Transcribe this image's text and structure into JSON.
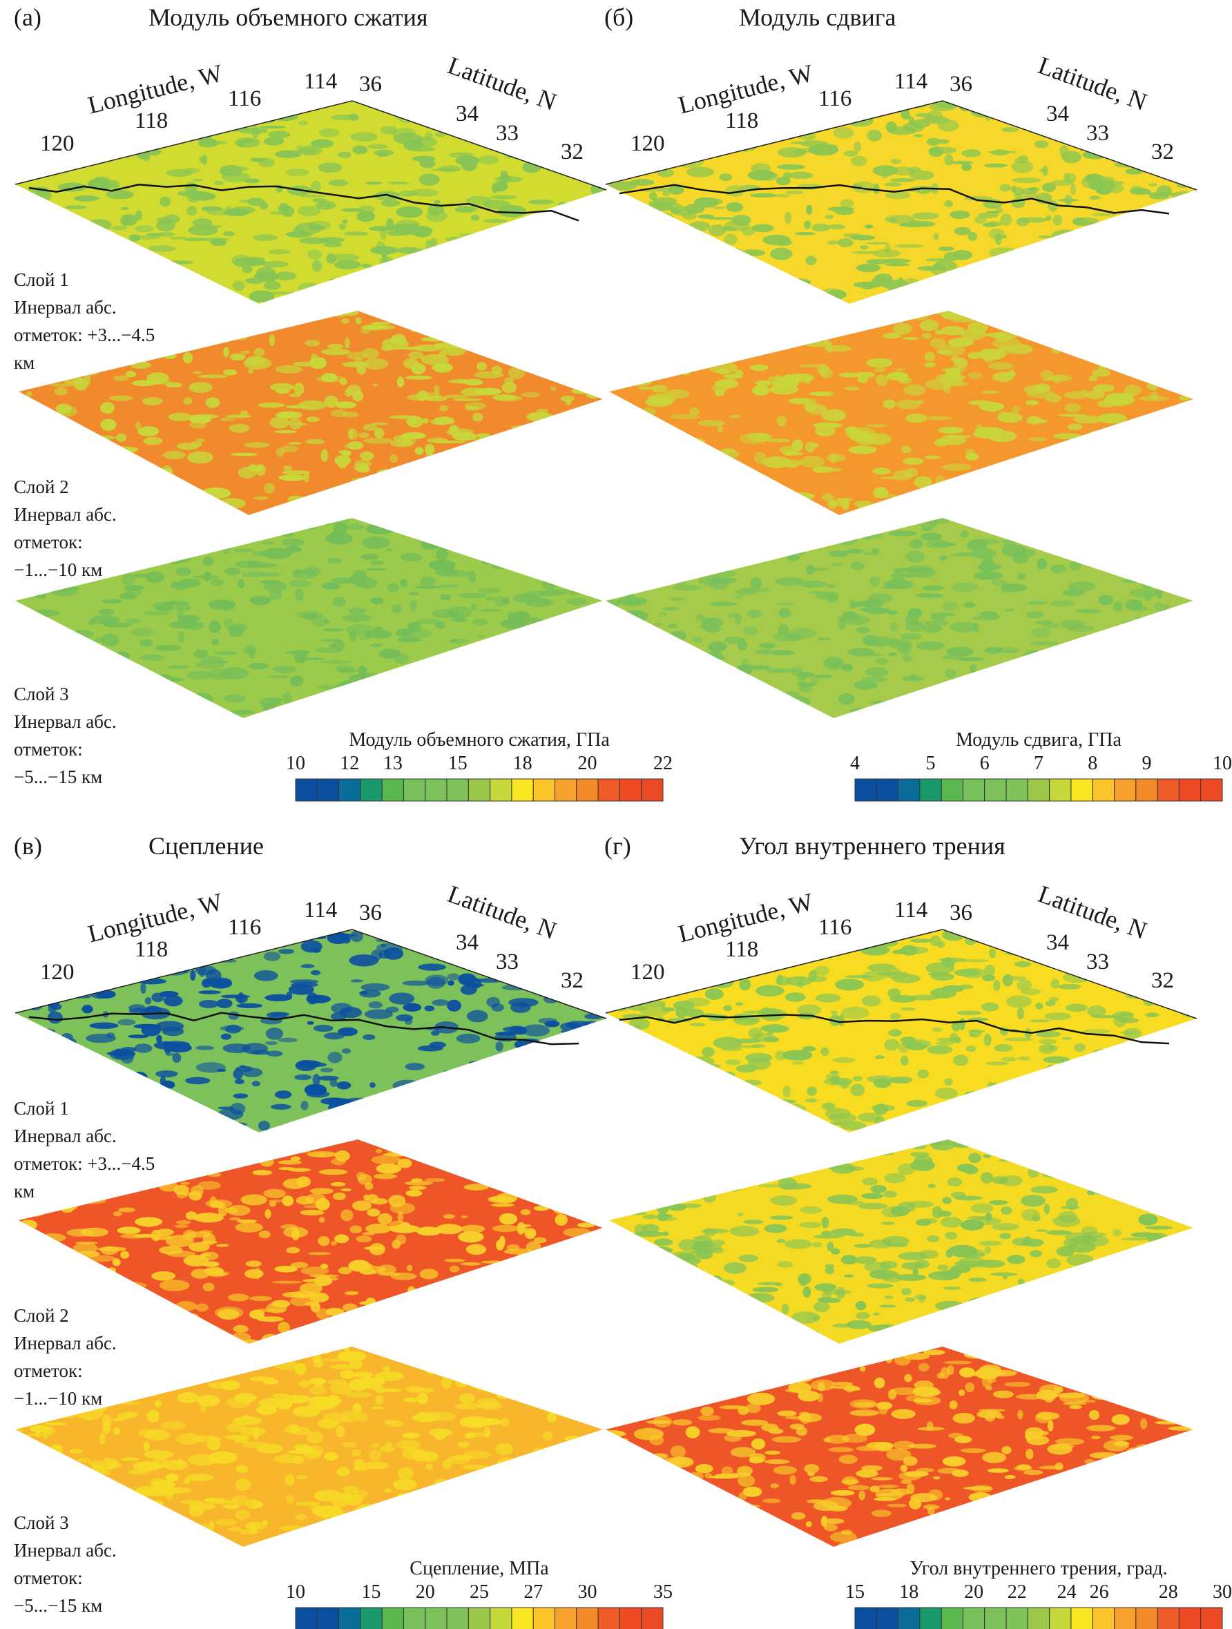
{
  "panels": [
    {
      "letter": "(а)",
      "title": "Модуль объемного сжатия",
      "colorbar": {
        "title": "Модуль объемного сжатия, ГПа",
        "ticks": [
          "10",
          "12",
          "13",
          "15",
          "18",
          "20",
          "22"
        ]
      },
      "layers": [
        {
          "base": "#d2dc30",
          "spot": "#86c455"
        },
        {
          "base": "#f08a2c",
          "spot": "#c8d83a"
        },
        {
          "base": "#9ccb4c",
          "spot": "#74bd58"
        }
      ]
    },
    {
      "letter": "(б)",
      "title": "Модуль сдвига",
      "colorbar": {
        "title": "Модуль сдвига, ГПа",
        "ticks": [
          "4",
          "5",
          "6",
          "7",
          "8",
          "9",
          "10"
        ]
      },
      "layers": [
        {
          "base": "#f6d82a",
          "spot": "#8cc652"
        },
        {
          "base": "#f4982e",
          "spot": "#c9d63a"
        },
        {
          "base": "#a6cb4a",
          "spot": "#78c05a"
        }
      ]
    },
    {
      "letter": "(в)",
      "title": "Сцепление",
      "colorbar": {
        "title": "Сцепление, МПа",
        "ticks": [
          "10",
          "15",
          "20",
          "25",
          "27",
          "30",
          "35"
        ]
      },
      "layers": [
        {
          "base": "#7cc15a",
          "spot": "#0b4fa0"
        },
        {
          "base": "#ee5628",
          "spot": "#f8cf2a"
        },
        {
          "base": "#f8b62c",
          "spot": "#f6dc26"
        }
      ]
    },
    {
      "letter": "(г)",
      "title": "Угол внутреннего трения",
      "colorbar": {
        "title": "Угол внутреннего трения, град.",
        "ticks": [
          "15",
          "18",
          "20",
          "22",
          "24",
          "26",
          "28",
          "30"
        ]
      },
      "layers": [
        {
          "base": "#f8dc22",
          "spot": "#8cc652"
        },
        {
          "base": "#f5da24",
          "spot": "#86c455"
        },
        {
          "base": "#ee5628",
          "spot": "#f8cf2a"
        }
      ]
    }
  ],
  "axes": {
    "longitude_label": "Longitude, W",
    "latitude_label": "Latitude, N",
    "longitude_ticks": [
      "120",
      "118",
      "116",
      "114"
    ],
    "latitude_ticks": [
      "36",
      "34",
      "33",
      "32"
    ]
  },
  "layer_labels": [
    [
      "Слой 1",
      "Инервал абс.",
      "отметок: +3...−4.5",
      "км"
    ],
    [
      "Слой 2",
      "Инервал абс.",
      "отметок:",
      "−1...−10 км"
    ],
    [
      "Слой 3",
      "Инервал абс.",
      "отметок:",
      "−5...−15 км"
    ]
  ],
  "colorbar_colors": [
    "#0b4fa0",
    "#0b4fa0",
    "#0a6e9a",
    "#1a9a6a",
    "#5ab74e",
    "#78c05a",
    "#7cc15a",
    "#80c25a",
    "#9cc84a",
    "#c5d83a",
    "#fbe622",
    "#fdc52a",
    "#f7a02c",
    "#f28a2a",
    "#ef5a28",
    "#ee4a24",
    "#ec4a24"
  ]
}
